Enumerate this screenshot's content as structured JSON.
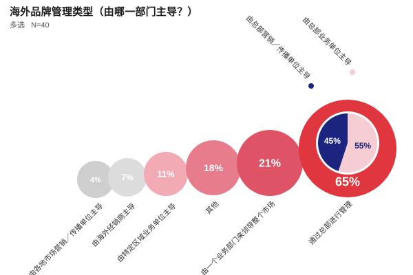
{
  "title": "海外品牌管理类型（由哪一部门主导？）",
  "subtitle": {
    "multi_select": "多选",
    "sample": "N=40"
  },
  "chart_data": {
    "type": "bubble",
    "title": "海外品牌管理类型（由哪一部门主导？）",
    "unit": "%",
    "categories": [
      "由各地市场营销／传播单位主导",
      "由海外经销商主导",
      "由特定区域业务单位主导",
      "其他",
      "由一个业务部门来领导整个市场",
      "通过总部进行管理"
    ],
    "values": [
      4,
      7,
      11,
      18,
      21,
      65
    ],
    "value_labels": [
      "4%",
      "7%",
      "11%",
      "18%",
      "21%",
      "65%"
    ],
    "colors": [
      "#cfcfcf",
      "#dcdcdc",
      "#f2aab4",
      "#e77c8c",
      "#df5366",
      "#e0363f"
    ],
    "breakdown": {
      "parent": "通过总部进行管理",
      "type": "pie",
      "slices": [
        {
          "label": "由总部营销／传播单位主导",
          "value": 45,
          "value_label": "45%",
          "color": "#1b2580"
        },
        {
          "label": "由总部业务单位主导",
          "value": 55,
          "value_label": "55%",
          "color": "#f6cdd3"
        }
      ]
    }
  }
}
